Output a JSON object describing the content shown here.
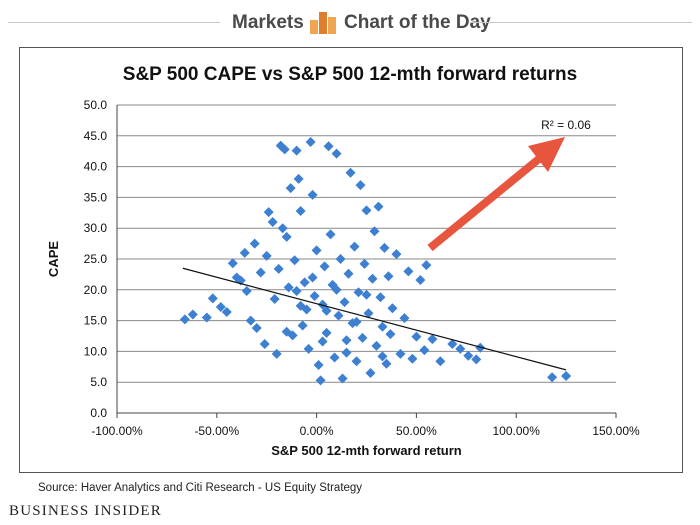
{
  "header": {
    "section": "Markets",
    "column": "Chart of the Day"
  },
  "source": "Source: Haver Analytics and Citi Research - US Equity Strategy",
  "brand": "Business Insider",
  "colors": {
    "points": "#3d7fd0",
    "arrow": "#e8553e",
    "trend": "#111111",
    "grid": "#8a8a8a"
  },
  "chart_data": {
    "type": "scatter",
    "title": "S&P 500 CAPE vs S&P 500 12-mth forward returns",
    "xlabel": "S&P 500 12-mth forward return",
    "ylabel": "CAPE",
    "xlim": [
      -1.0,
      1.5
    ],
    "ylim": [
      0,
      50
    ],
    "x_ticks": [
      "-100.00%",
      "-50.00%",
      "0.00%",
      "50.00%",
      "100.00%",
      "150.00%"
    ],
    "y_ticks": [
      "0.0",
      "5.0",
      "10.0",
      "15.0",
      "20.0",
      "25.0",
      "30.0",
      "35.0",
      "40.0",
      "45.0",
      "50.0"
    ],
    "grid": "horizontal",
    "annotation": "R² = 0.06",
    "trendline": {
      "x": [
        -0.67,
        1.25
      ],
      "y": [
        23.5,
        7.0
      ]
    },
    "series": [
      {
        "points": [
          [
            -0.66,
            15.2
          ],
          [
            -0.62,
            16.0
          ],
          [
            -0.55,
            15.5
          ],
          [
            -0.52,
            18.6
          ],
          [
            -0.48,
            17.2
          ],
          [
            -0.45,
            16.4
          ],
          [
            -0.42,
            24.3
          ],
          [
            -0.4,
            22.0
          ],
          [
            -0.38,
            21.5
          ],
          [
            -0.36,
            26.0
          ],
          [
            -0.35,
            19.8
          ],
          [
            -0.33,
            15.0
          ],
          [
            -0.31,
            27.5
          ],
          [
            -0.3,
            13.8
          ],
          [
            -0.28,
            22.8
          ],
          [
            -0.26,
            11.2
          ],
          [
            -0.25,
            25.5
          ],
          [
            -0.24,
            32.6
          ],
          [
            -0.22,
            31.0
          ],
          [
            -0.21,
            18.5
          ],
          [
            -0.2,
            9.6
          ],
          [
            -0.19,
            23.4
          ],
          [
            -0.18,
            43.4
          ],
          [
            -0.17,
            30.0
          ],
          [
            -0.16,
            42.8
          ],
          [
            -0.15,
            28.6
          ],
          [
            -0.14,
            20.4
          ],
          [
            -0.13,
            36.5
          ],
          [
            -0.12,
            12.6
          ],
          [
            -0.11,
            24.8
          ],
          [
            -0.1,
            42.6
          ],
          [
            -0.09,
            38.0
          ],
          [
            -0.08,
            32.8
          ],
          [
            -0.07,
            14.2
          ],
          [
            -0.06,
            21.2
          ],
          [
            -0.05,
            16.8
          ],
          [
            -0.04,
            10.4
          ],
          [
            -0.03,
            44.0
          ],
          [
            -0.02,
            35.4
          ],
          [
            -0.01,
            19.0
          ],
          [
            0.0,
            26.4
          ],
          [
            0.01,
            7.8
          ],
          [
            0.02,
            5.3
          ],
          [
            0.03,
            17.6
          ],
          [
            0.04,
            23.8
          ],
          [
            0.05,
            13.0
          ],
          [
            0.06,
            43.3
          ],
          [
            0.07,
            29.0
          ],
          [
            0.08,
            20.8
          ],
          [
            0.09,
            9.0
          ],
          [
            0.1,
            42.1
          ],
          [
            0.11,
            15.8
          ],
          [
            0.12,
            25.0
          ],
          [
            0.13,
            5.6
          ],
          [
            0.14,
            18.0
          ],
          [
            0.15,
            11.8
          ],
          [
            0.16,
            22.6
          ],
          [
            0.17,
            39.0
          ],
          [
            0.18,
            14.6
          ],
          [
            0.19,
            27.0
          ],
          [
            0.2,
            8.4
          ],
          [
            0.21,
            19.6
          ],
          [
            0.22,
            37.0
          ],
          [
            0.23,
            12.2
          ],
          [
            0.24,
            24.2
          ],
          [
            0.25,
            32.9
          ],
          [
            0.26,
            16.2
          ],
          [
            0.27,
            6.5
          ],
          [
            0.28,
            21.8
          ],
          [
            0.29,
            29.5
          ],
          [
            0.3,
            10.9
          ],
          [
            0.31,
            33.5
          ],
          [
            0.32,
            18.8
          ],
          [
            0.33,
            14.0
          ],
          [
            0.34,
            26.8
          ],
          [
            0.35,
            8.0
          ],
          [
            0.36,
            22.2
          ],
          [
            0.37,
            12.8
          ],
          [
            0.38,
            17.0
          ],
          [
            0.4,
            25.8
          ],
          [
            0.42,
            9.6
          ],
          [
            0.44,
            15.4
          ],
          [
            0.46,
            23.0
          ],
          [
            0.48,
            8.8
          ],
          [
            0.5,
            12.4
          ],
          [
            0.52,
            21.6
          ],
          [
            0.54,
            10.2
          ],
          [
            0.55,
            24.0
          ],
          [
            0.58,
            12.0
          ],
          [
            0.62,
            8.4
          ],
          [
            0.68,
            11.2
          ],
          [
            0.72,
            10.4
          ],
          [
            0.76,
            9.3
          ],
          [
            0.8,
            8.7
          ],
          [
            0.82,
            10.6
          ],
          [
            1.18,
            5.8
          ],
          [
            1.25,
            6.0
          ],
          [
            -0.08,
            17.4
          ],
          [
            0.03,
            11.6
          ],
          [
            -0.15,
            13.2
          ],
          [
            0.1,
            20.0
          ],
          [
            0.2,
            14.8
          ],
          [
            -0.02,
            22.0
          ],
          [
            0.15,
            9.8
          ],
          [
            0.05,
            16.6
          ],
          [
            0.25,
            19.2
          ],
          [
            -0.1,
            19.8
          ],
          [
            0.33,
            9.2
          ]
        ]
      }
    ]
  }
}
